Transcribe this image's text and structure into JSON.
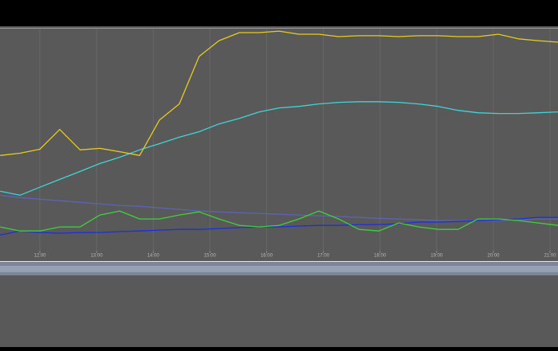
{
  "chart_data": {
    "type": "line",
    "x": [
      11.3,
      11.65,
      12.0,
      12.35,
      12.71,
      13.06,
      13.41,
      13.76,
      14.11,
      14.46,
      14.81,
      15.16,
      15.52,
      15.87,
      16.22,
      16.57,
      16.92,
      17.27,
      17.63,
      17.98,
      18.33,
      18.68,
      19.03,
      19.38,
      19.73,
      20.09,
      20.44,
      20.79,
      21.14
    ],
    "xlim": [
      11.297,
      21.14
    ],
    "xticks": [
      {
        "value": 12,
        "label": "12:00"
      },
      {
        "value": 13,
        "label": "13:00"
      },
      {
        "value": 14,
        "label": "14:00"
      },
      {
        "value": 15,
        "label": "15:00"
      },
      {
        "value": 16,
        "label": "16:00"
      },
      {
        "value": 17,
        "label": "17:00"
      },
      {
        "value": 18,
        "label": "18:00"
      },
      {
        "value": 19,
        "label": "19:00"
      },
      {
        "value": 20,
        "label": "20:00"
      },
      {
        "value": 21,
        "label": "21:00"
      }
    ],
    "ylim": [
      0,
      100
    ],
    "grid": true,
    "series": [
      {
        "color": "#5a64b8",
        "values": [
          25.0,
          23.9,
          23.2,
          22.5,
          21.8,
          21.1,
          20.4,
          20.0,
          19.3,
          18.6,
          17.9,
          17.5,
          17.1,
          16.8,
          16.4,
          16.1,
          15.7,
          15.4,
          15.0,
          14.6,
          14.3,
          13.9,
          13.6,
          13.6,
          13.6,
          13.6,
          13.9,
          14.3,
          14.3
        ]
      },
      {
        "color": "#1c2ee0",
        "values": [
          7.1,
          8.9,
          8.2,
          7.9,
          8.2,
          8.2,
          8.6,
          8.9,
          9.3,
          9.6,
          9.6,
          10.0,
          10.4,
          10.7,
          10.7,
          11.1,
          11.4,
          11.4,
          11.8,
          11.8,
          12.1,
          12.9,
          12.9,
          13.2,
          13.6,
          13.9,
          14.3,
          15.0,
          15.0
        ]
      },
      {
        "color": "#3ed23a",
        "values": [
          10.7,
          8.9,
          8.9,
          10.7,
          10.7,
          16.1,
          17.9,
          14.3,
          14.3,
          16.1,
          17.5,
          14.3,
          11.4,
          10.7,
          11.4,
          14.3,
          17.9,
          14.3,
          9.6,
          8.9,
          12.5,
          10.7,
          9.6,
          9.6,
          14.3,
          14.3,
          13.6,
          12.5,
          11.4
        ]
      },
      {
        "color": "#3dd6d6",
        "values": [
          26.8,
          25.0,
          28.6,
          32.1,
          35.7,
          39.3,
          42.1,
          45.4,
          48.2,
          51.1,
          53.6,
          57.1,
          59.6,
          62.5,
          64.3,
          65.0,
          66.1,
          66.8,
          67.1,
          67.1,
          66.8,
          66.1,
          65.0,
          63.2,
          62.1,
          61.8,
          61.8,
          62.1,
          62.5
        ]
      },
      {
        "color": "#e8cc1c",
        "values": [
          42.9,
          43.9,
          45.7,
          54.6,
          45.4,
          46.1,
          44.6,
          42.9,
          58.9,
          66.1,
          87.5,
          94.6,
          98.2,
          98.2,
          98.9,
          97.5,
          97.5,
          96.4,
          96.8,
          96.8,
          96.4,
          96.8,
          96.8,
          96.4,
          96.4,
          97.5,
          95.4,
          94.6,
          93.9
        ]
      }
    ]
  }
}
